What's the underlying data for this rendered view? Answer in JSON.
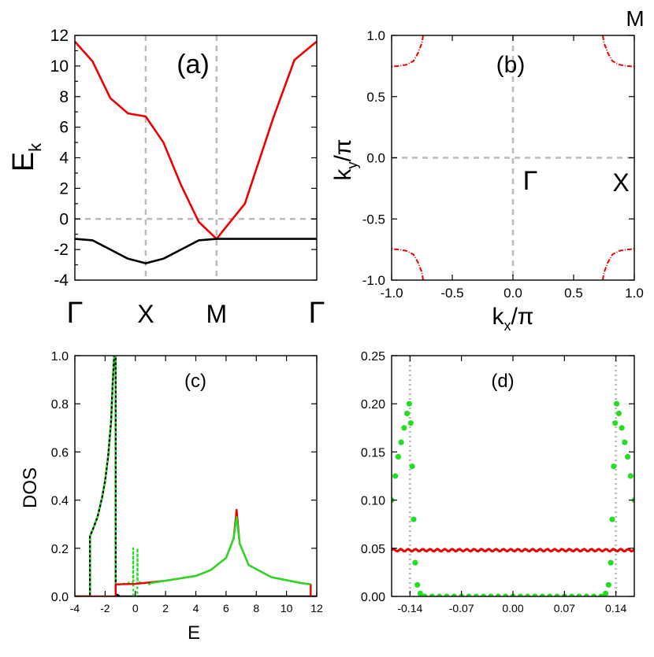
{
  "colors": {
    "red": "#ee0000",
    "black": "#000000",
    "green": "#22dd22",
    "gray_dashed": "#bbbbbb"
  },
  "corner_label": "M",
  "chart_data": [
    {
      "id": "a",
      "type": "line",
      "panel_label": "(a)",
      "ylabel": "E",
      "ylabel_sub": "k",
      "ylim": [
        -4,
        12
      ],
      "yticks": [
        -4,
        -2,
        0,
        2,
        4,
        6,
        8,
        10,
        12
      ],
      "x_points": [
        "Γ",
        "X",
        "M",
        "Γ"
      ],
      "x_point_positions": [
        0,
        1,
        2,
        3.4142
      ],
      "reference_lines": {
        "x": [
          1,
          2
        ],
        "y": [
          0
        ]
      },
      "series": [
        {
          "color": "#ee0000",
          "x": [
            0,
            0.25,
            0.5,
            0.75,
            1,
            1.25,
            1.5,
            1.75,
            2,
            2.4,
            2.8,
            3.1,
            3.4142
          ],
          "y": [
            11.6,
            10.3,
            7.9,
            6.9,
            6.7,
            5.0,
            2.2,
            -0.2,
            -1.3,
            1.0,
            6.6,
            10.4,
            11.6
          ]
        },
        {
          "color": "#000000",
          "x": [
            0,
            0.25,
            0.5,
            0.75,
            1,
            1.25,
            1.5,
            1.75,
            2,
            2.7,
            3.4142
          ],
          "y": [
            -1.3,
            -1.4,
            -2.0,
            -2.6,
            -2.9,
            -2.6,
            -2.0,
            -1.4,
            -1.3,
            -1.3,
            -1.3
          ]
        }
      ]
    },
    {
      "id": "b",
      "type": "line",
      "panel_label": "(b)",
      "xlabel": "k",
      "xlabel_sub": "x",
      "xlabel_tail": "/π",
      "ylabel": "k",
      "ylabel_sub": "y",
      "ylabel_tail": "/π",
      "xlim": [
        -1,
        1
      ],
      "ylim": [
        -1,
        1
      ],
      "xticks": [
        "-1.0",
        "-0.5",
        "0.0",
        "0.5",
        "1.0"
      ],
      "yticks": [
        "-1.0",
        "-0.5",
        "0.0",
        "0.5",
        "1.0"
      ],
      "symmetry_labels": [
        "Γ",
        "X"
      ],
      "reference_lines": {
        "x": [
          0
        ],
        "y": [
          0
        ]
      },
      "fermi_surface_arc": {
        "color": "#ee0000",
        "kx": [
          0.74,
          0.75,
          0.78,
          0.82,
          0.88,
          0.94,
          1.0
        ],
        "ky": [
          1.0,
          0.94,
          0.86,
          0.79,
          0.76,
          0.75,
          0.745
        ]
      }
    },
    {
      "id": "c",
      "type": "line",
      "panel_label": "(c)",
      "xlabel": "E",
      "ylabel": "DOS",
      "xlim": [
        -4,
        12
      ],
      "ylim": [
        0,
        1
      ],
      "xticks": [
        -4,
        -2,
        0,
        2,
        4,
        6,
        8,
        10,
        12
      ],
      "yticks": [
        "0.0",
        "0.2",
        "0.4",
        "0.6",
        "0.8",
        "1.0"
      ],
      "series": [
        {
          "color": "#000000",
          "style": "solid",
          "x": [
            -4,
            -3.0,
            -3.0,
            -2.8,
            -2.5,
            -2.2,
            -2.0,
            -1.8,
            -1.6,
            -1.5,
            -1.4,
            -1.35,
            -1.3,
            -1.3,
            -1.0,
            12
          ],
          "y": [
            0,
            0,
            0.25,
            0.28,
            0.33,
            0.41,
            0.48,
            0.58,
            0.73,
            0.88,
            1.0,
            1.0,
            1.0,
            0.01,
            0,
            0
          ]
        },
        {
          "color": "#22dd22",
          "style": "dotted",
          "x": [
            -4,
            -3.0,
            -3.0,
            -2.8,
            -2.5,
            -2.2,
            -2.0,
            -1.8,
            -1.6,
            -1.5,
            -1.4,
            -1.35,
            -1.3,
            -1.3,
            -1.0,
            -0.15,
            -0.14,
            -0.13,
            0.13,
            0.14,
            0.15,
            1.0
          ],
          "y": [
            0,
            0,
            0.25,
            0.28,
            0.33,
            0.41,
            0.48,
            0.58,
            0.73,
            0.88,
            1.0,
            1.0,
            1.0,
            0.05,
            0.05,
            0.06,
            0.2,
            0.0,
            0.0,
            0.2,
            0.06,
            0.05
          ]
        },
        {
          "color": "#ee0000",
          "style": "solid",
          "x": [
            -4,
            -1.3,
            -1.3,
            0,
            2,
            4,
            5,
            6,
            6.5,
            6.7,
            6.9,
            7.5,
            9,
            11,
            11.6,
            11.6,
            12
          ],
          "y": [
            0,
            0,
            0.05,
            0.052,
            0.065,
            0.085,
            0.11,
            0.16,
            0.24,
            0.36,
            0.22,
            0.13,
            0.08,
            0.055,
            0.05,
            0,
            0
          ]
        },
        {
          "color": "#22dd22",
          "style": "solid",
          "x": [
            1.0,
            2,
            4,
            5,
            6,
            6.5,
            6.7,
            6.9,
            7.5,
            9,
            11,
            11.6
          ],
          "y": [
            0.055,
            0.065,
            0.085,
            0.11,
            0.16,
            0.24,
            0.33,
            0.22,
            0.13,
            0.08,
            0.055,
            0.05
          ]
        }
      ]
    },
    {
      "id": "d",
      "type": "line",
      "panel_label": "(d)",
      "xlim": [
        -0.165,
        0.165
      ],
      "ylim": [
        0,
        0.25
      ],
      "xticks": [
        "-0.14",
        "-0.07",
        "0.00",
        "0.07",
        "0.14"
      ],
      "xtick_values": [
        -0.14,
        -0.07,
        0.0,
        0.07,
        0.14
      ],
      "yticks": [
        "0.00",
        "0.05",
        "0.10",
        "0.15",
        "0.20",
        "0.25"
      ],
      "reference_lines": {
        "x": [
          -0.14,
          0.14
        ]
      },
      "series": [
        {
          "color": "#ee0000",
          "style": "solid-wavy",
          "x": [
            -0.165,
            0.165
          ],
          "y": [
            0.048,
            0.048
          ]
        },
        {
          "color": "#22dd22",
          "style": "dots",
          "x": [
            -0.165,
            -0.16,
            -0.156,
            -0.152,
            -0.148,
            -0.144,
            -0.141,
            -0.139,
            -0.137,
            -0.135,
            -0.133,
            -0.13,
            -0.126,
            -0.12,
            -0.11,
            -0.1,
            -0.09,
            -0.08,
            -0.07,
            -0.06,
            -0.05,
            -0.04,
            -0.03,
            -0.02,
            -0.01,
            0.0,
            0.01,
            0.02,
            0.03,
            0.04,
            0.05,
            0.06,
            0.07,
            0.08,
            0.09,
            0.1,
            0.11,
            0.12,
            0.126,
            0.13,
            0.133,
            0.135,
            0.137,
            0.139,
            0.141,
            0.144,
            0.148,
            0.152,
            0.156,
            0.16,
            0.165
          ],
          "y": [
            0.1,
            0.125,
            0.145,
            0.16,
            0.175,
            0.19,
            0.2,
            0.18,
            0.135,
            0.08,
            0.035,
            0.012,
            0.003,
            0.0,
            0.0,
            0.0,
            0.0,
            0.0,
            0.0,
            0.0,
            0.0,
            0.0,
            0.0,
            0.0,
            0.0,
            0.0,
            0.0,
            0.0,
            0.0,
            0.0,
            0.0,
            0.0,
            0.0,
            0.0,
            0.0,
            0.0,
            0.0,
            0.0,
            0.003,
            0.012,
            0.035,
            0.08,
            0.135,
            0.18,
            0.2,
            0.19,
            0.175,
            0.16,
            0.145,
            0.125,
            0.1
          ]
        }
      ]
    }
  ]
}
